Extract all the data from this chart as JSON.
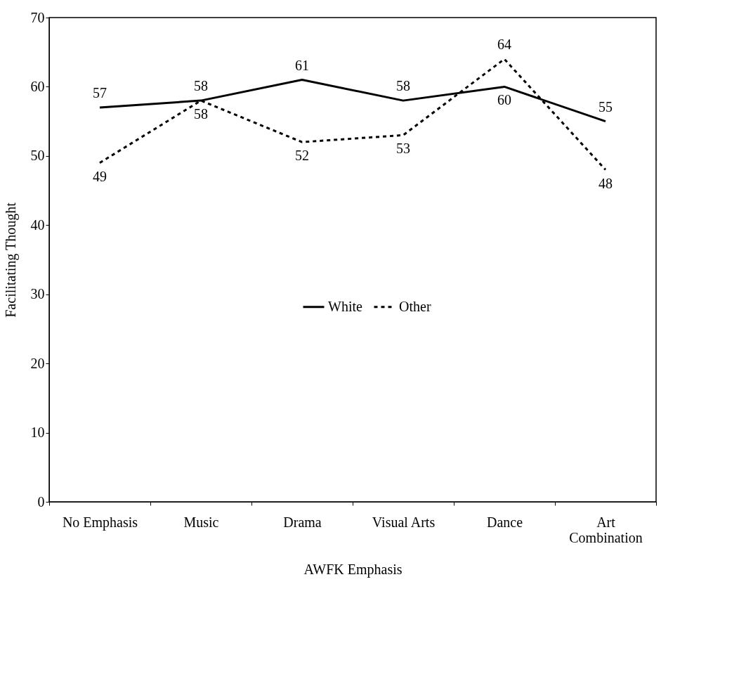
{
  "chart_data": {
    "type": "line",
    "xlabel": "AWFK Emphasis",
    "ylabel": "Facilitating Thought",
    "categories": [
      "No Emphasis",
      "Music",
      "Drama",
      "Visual Arts",
      "Dance",
      "Art Combination"
    ],
    "series": [
      {
        "name": "White",
        "color": "#000000",
        "line_style": "solid",
        "values": [
          57,
          58,
          61,
          58,
          60,
          55
        ]
      },
      {
        "name": "Other",
        "color": "#000000",
        "line_style": "dashed",
        "values": [
          49,
          58,
          52,
          53,
          64,
          48
        ]
      }
    ],
    "ylim": [
      0,
      70
    ],
    "yticks": [
      0,
      10,
      20,
      30,
      40,
      50,
      60,
      70
    ],
    "grid": false,
    "legend": "center",
    "marker": "none",
    "data_labels": true
  }
}
